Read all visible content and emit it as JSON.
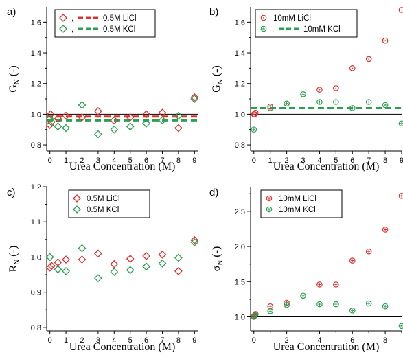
{
  "colors": {
    "red": "#e0302e",
    "green": "#2aa050",
    "ref": "#000000"
  },
  "chart_data": [
    {
      "panel": "a)",
      "type": "scatter",
      "ylabel": {
        "main": "G",
        "sub": "N",
        "unit": " (-)"
      },
      "xlabel": "Urea Concentration (M)",
      "xlim": [
        -0.2,
        9.2
      ],
      "ylim": [
        0.76,
        1.7
      ],
      "xticks": [
        "0",
        "1",
        "2",
        "3",
        "4",
        "5",
        "6",
        "7",
        "8",
        "9"
      ],
      "yticks": [
        "0.8",
        "1.0",
        "1.2",
        "1.4",
        "1.6"
      ],
      "reference_line": 1.0,
      "legend": {
        "placement": "top",
        "items": [
          {
            "name": "0.5M LiCl",
            "color": "red",
            "marker": "diamond",
            "line": true
          },
          {
            "name": "0.5M KCl",
            "color": "green",
            "marker": "diamond",
            "line": true
          }
        ]
      },
      "series": [
        {
          "name": "0.5M LiCl",
          "color": "red",
          "marker": "diamond",
          "x": [
            0,
            0.05,
            0.1,
            0.5,
            1,
            2,
            3,
            4,
            5,
            6,
            7,
            8,
            9
          ],
          "y": [
            0.93,
            1.0,
            0.95,
            0.97,
            0.99,
            0.98,
            1.02,
            0.96,
            0.98,
            1.0,
            1.01,
            0.91,
            1.11
          ],
          "mean_line": 0.985
        },
        {
          "name": "0.5M KCl",
          "color": "green",
          "marker": "diamond",
          "x": [
            0,
            0.1,
            0.5,
            1,
            2,
            3,
            4,
            5,
            6,
            7,
            8,
            9
          ],
          "y": [
            0.97,
            0.95,
            0.92,
            0.91,
            1.06,
            0.87,
            0.9,
            0.92,
            0.94,
            0.96,
            0.99,
            1.1
          ],
          "mean_line": 0.96
        }
      ]
    },
    {
      "panel": "b)",
      "type": "scatter",
      "ylabel": {
        "main": "G",
        "sub": "N",
        "unit": " (-)"
      },
      "xlabel": "Urea Concentration (M)",
      "xlim": [
        -0.2,
        9.0
      ],
      "ylim": [
        0.76,
        1.7
      ],
      "xticks": [
        "0",
        "1",
        "2",
        "3",
        "4",
        "5",
        "6",
        "7",
        "8",
        "9"
      ],
      "yticks": [
        "0.8",
        "1.0",
        "1.2",
        "1.4",
        "1.6"
      ],
      "reference_line": 1.0,
      "legend": {
        "placement": "top",
        "items": [
          {
            "name": "10mM LiCl",
            "color": "red",
            "marker": "circle-dot",
            "line": false
          },
          {
            "name": "10mM KCl",
            "color": "green",
            "marker": "circle-plus",
            "line": true
          }
        ]
      },
      "series": [
        {
          "name": "10mM LiCl",
          "color": "red",
          "marker": "circle-dot",
          "x": [
            0,
            0.05,
            0.1,
            1,
            2,
            4,
            5,
            6,
            7,
            8,
            9
          ],
          "y": [
            1.0,
            1.0,
            1.01,
            1.05,
            1.07,
            1.16,
            1.17,
            1.3,
            1.36,
            1.48,
            1.68
          ]
        },
        {
          "name": "10mM KCl",
          "color": "green",
          "marker": "circle-plus",
          "x": [
            0,
            1,
            2,
            3,
            4,
            5,
            6,
            7,
            8,
            9
          ],
          "y": [
            0.9,
            1.04,
            1.07,
            1.13,
            1.08,
            1.08,
            1.04,
            1.08,
            1.06,
            0.94
          ],
          "mean_line": 1.04
        }
      ]
    },
    {
      "panel": "c)",
      "type": "scatter",
      "ylabel": {
        "main": "R",
        "sub": "N",
        "unit": " (-)"
      },
      "xlabel": "Urea Concentration (M)",
      "xlim": [
        -0.2,
        9.2
      ],
      "ylim": [
        0.79,
        1.2
      ],
      "xticks": [
        "0",
        "1",
        "2",
        "3",
        "4",
        "5",
        "6",
        "7",
        "8",
        "9"
      ],
      "yticks": [
        "0.8",
        "0.9",
        "1.0",
        "1.1",
        "1.2"
      ],
      "reference_line": 1.0,
      "legend": {
        "placement": "top",
        "items": [
          {
            "name": "0.5M LiCl",
            "color": "red",
            "marker": "diamond",
            "line": false
          },
          {
            "name": "0.5M KCl",
            "color": "green",
            "marker": "diamond",
            "line": false
          }
        ]
      },
      "series": [
        {
          "name": "0.5M LiCl",
          "color": "red",
          "marker": "diamond",
          "x": [
            0,
            0.1,
            0.5,
            1,
            2,
            3,
            4,
            5,
            6,
            7,
            8,
            9
          ],
          "y": [
            0.97,
            0.975,
            0.985,
            0.993,
            0.993,
            1.01,
            0.98,
            0.995,
            1.003,
            1.007,
            0.96,
            1.048
          ]
        },
        {
          "name": "0.5M KCl",
          "color": "green",
          "marker": "diamond",
          "x": [
            0,
            0.5,
            1,
            2,
            3,
            4,
            5,
            6,
            7,
            8,
            9
          ],
          "y": [
            1.0,
            0.965,
            0.96,
            1.025,
            0.94,
            0.958,
            0.963,
            0.973,
            0.982,
            0.998,
            1.042
          ]
        }
      ]
    },
    {
      "panel": "d)",
      "type": "scatter",
      "ylabel": {
        "main": "σ",
        "sub": "N",
        "unit": " (-)"
      },
      "xlabel": "Urea Concentration (M)",
      "xlim": [
        -0.2,
        9.0
      ],
      "ylim": [
        0.8,
        2.85
      ],
      "xticks": [
        "0",
        "2",
        "4",
        "6",
        "8"
      ],
      "yticks": [
        "1.0",
        "1.5",
        "2.0",
        "2.5"
      ],
      "reference_line": 1.0,
      "legend": {
        "placement": "top",
        "items": [
          {
            "name": "10mM LiCl",
            "color": "red",
            "marker": "circle-plus",
            "line": false
          },
          {
            "name": "10mM KCl",
            "color": "green",
            "marker": "circle-plus",
            "line": false
          }
        ]
      },
      "series": [
        {
          "name": "10mM LiCl",
          "color": "red",
          "marker": "circle-plus",
          "x": [
            0,
            0.05,
            0.1,
            1,
            2,
            4,
            5,
            6,
            7,
            8,
            9
          ],
          "y": [
            1.01,
            1.02,
            1.04,
            1.15,
            1.2,
            1.46,
            1.46,
            1.8,
            1.93,
            2.24,
            2.72
          ]
        },
        {
          "name": "10mM KCl",
          "color": "green",
          "marker": "circle-plus",
          "x": [
            0,
            0.1,
            1,
            2,
            3,
            4,
            5,
            6,
            7,
            8,
            9
          ],
          "y": [
            1.0,
            1.03,
            1.08,
            1.17,
            1.3,
            1.18,
            1.18,
            1.09,
            1.19,
            1.15,
            0.87
          ]
        }
      ]
    }
  ]
}
